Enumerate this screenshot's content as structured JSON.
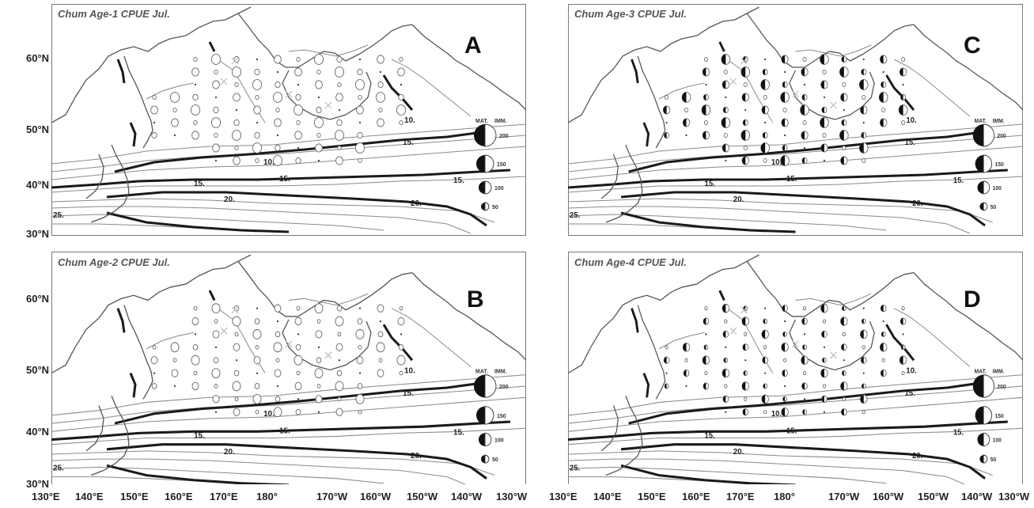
{
  "panels": [
    {
      "title": "Chum Age-1 CPUE Jul.",
      "letter": "A"
    },
    {
      "title": "Chum Age-3 CPUE Jul.",
      "letter": "C"
    },
    {
      "title": "Chum Age-2 CPUE Jul.",
      "letter": "B"
    },
    {
      "title": "Chum Age-4 CPUE Jul.",
      "letter": "D"
    }
  ],
  "lat_labels": [
    "60°N",
    "50°N",
    "40°N",
    "30°N"
  ],
  "lon_labels": [
    "130°E",
    "140°E",
    "150°E",
    "160°E",
    "170°E",
    "180°",
    "170°W",
    "160°W",
    "150°W",
    "140°W",
    "130°W"
  ],
  "isotherm_labels": [
    "10.",
    "15.",
    "15.",
    "15.",
    "20.",
    "20.",
    "10.",
    "15.",
    "25."
  ],
  "legend": {
    "header_left": "MAT.",
    "header_right": "IMM.",
    "values": [
      "200",
      "150",
      "100",
      "50"
    ]
  },
  "colors": {
    "land_line": "#555555",
    "isotherm_heavy": "#1a1a1a",
    "isotherm_light": "#8a8a8a",
    "mature": "#111111",
    "immature_outline": "#666666"
  }
}
